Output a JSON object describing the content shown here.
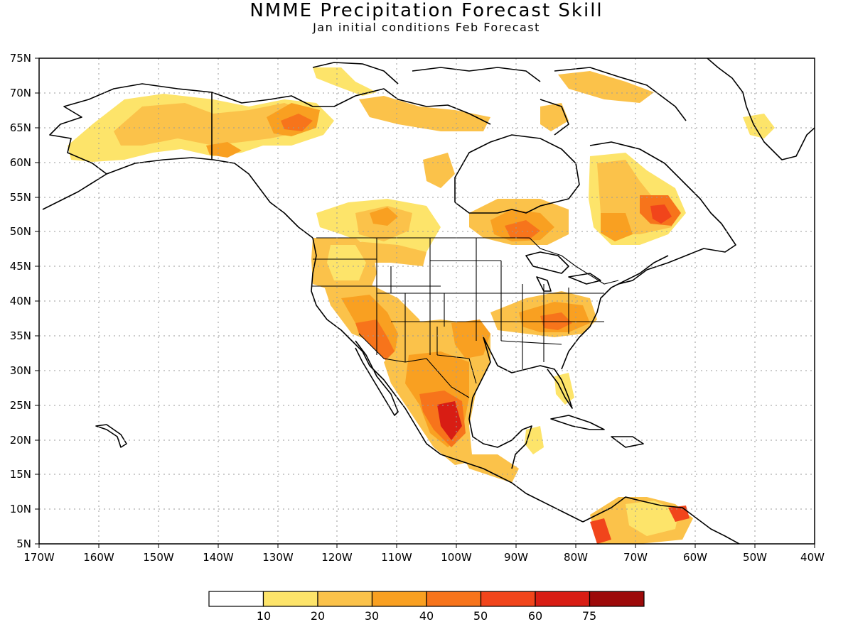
{
  "title": "NMME Precipitation Forecast Skill",
  "subtitle": "Jan initial conditions  Feb Forecast",
  "map": {
    "lat_ticks": [
      "75N",
      "70N",
      "65N",
      "60N",
      "55N",
      "50N",
      "45N",
      "40N",
      "35N",
      "30N",
      "25N",
      "20N",
      "15N",
      "10N",
      "5N"
    ],
    "lon_ticks": [
      "170W",
      "160W",
      "150W",
      "140W",
      "130W",
      "120W",
      "110W",
      "100W",
      "90W",
      "80W",
      "70W",
      "60W",
      "50W",
      "40W"
    ]
  },
  "colorbar": {
    "colors": [
      "#ffffff",
      "#fde46a",
      "#fbc24a",
      "#f9a021",
      "#f7741b",
      "#f1451b",
      "#d81d14",
      "#9d0a0a"
    ],
    "labels": [
      "10",
      "20",
      "30",
      "40",
      "50",
      "60",
      "75"
    ]
  }
}
